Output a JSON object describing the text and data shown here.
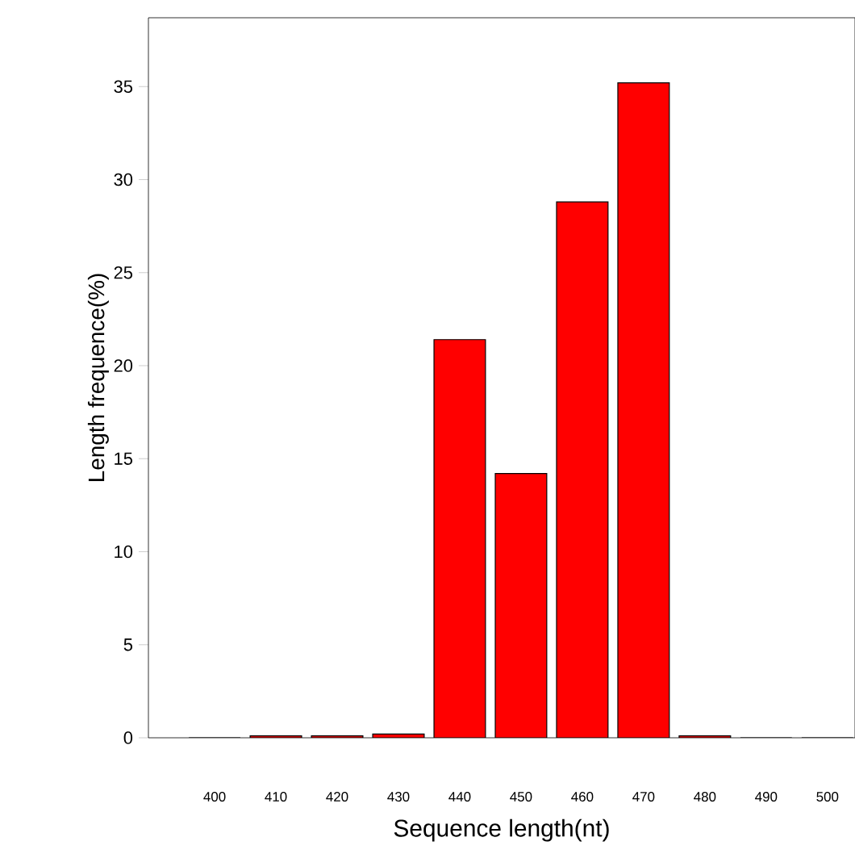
{
  "chart_data": {
    "type": "bar",
    "xlabel": "Sequence length(nt)",
    "ylabel": "Length frequence(%)",
    "categories": [
      "400",
      "410",
      "420",
      "430",
      "440",
      "450",
      "460",
      "470",
      "480",
      "490",
      "500"
    ],
    "values": [
      0,
      0.1,
      0.1,
      0.2,
      21.4,
      14.2,
      28.8,
      35.2,
      0.1,
      0,
      0
    ],
    "color": "#ff0000",
    "ylim": [
      0,
      38.7
    ],
    "yticks": [
      0,
      5,
      10,
      15,
      20,
      25,
      30,
      35
    ],
    "grid": false
  }
}
